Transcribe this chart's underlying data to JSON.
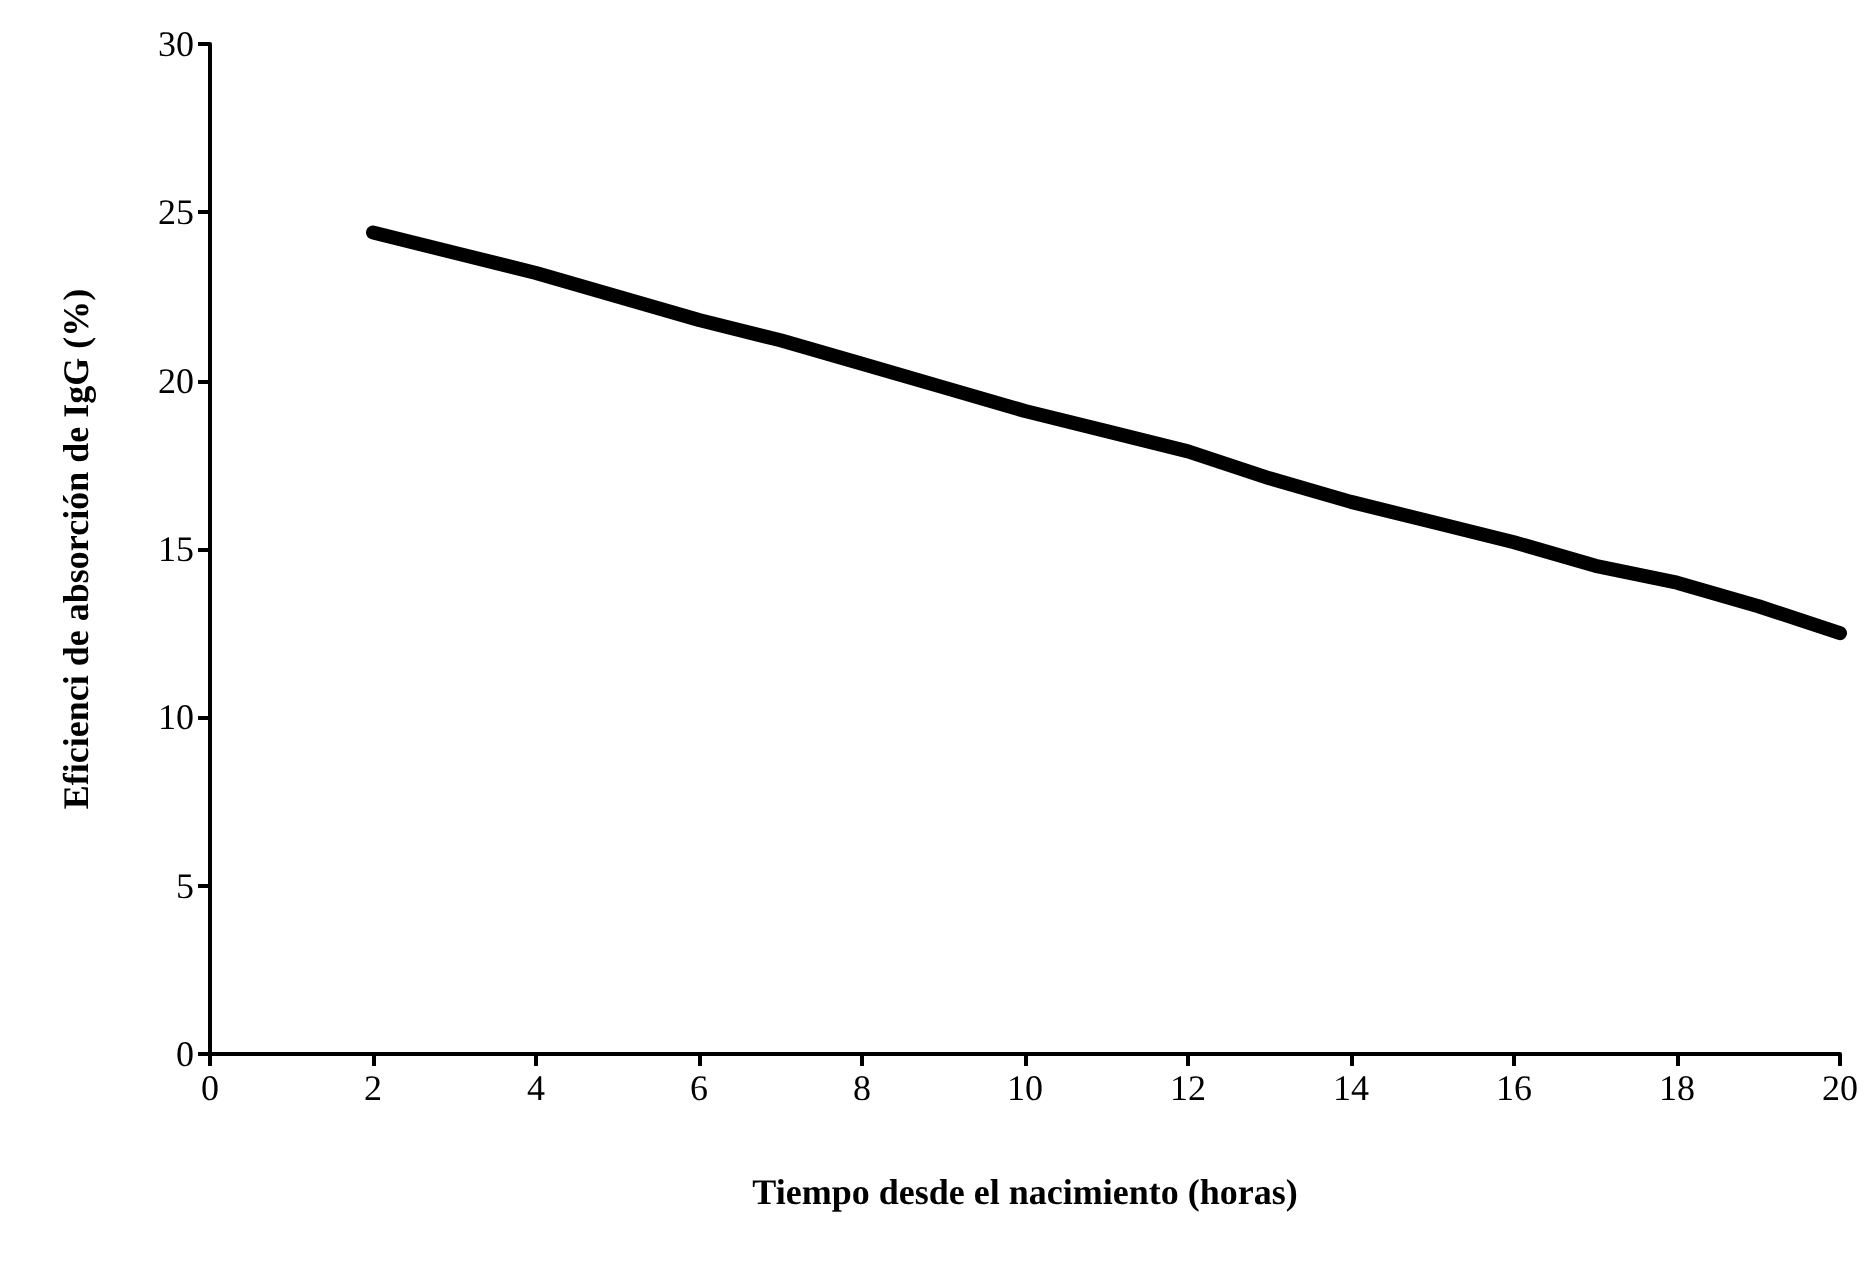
{
  "chart_data": {
    "type": "line",
    "xlabel": "Tiempo desde el nacimiento (horas)",
    "ylabel": "Eficienci de absorción de IgG (%)",
    "x": [
      2,
      3,
      4,
      5,
      6,
      7,
      8,
      9,
      10,
      11,
      12,
      13,
      14,
      15,
      16,
      17,
      18,
      19,
      20
    ],
    "series": [
      {
        "color": "#000000",
        "values": [
          24.4,
          23.8,
          23.2,
          22.5,
          21.8,
          21.2,
          20.5,
          19.8,
          19.1,
          18.5,
          17.9,
          17.1,
          16.4,
          15.8,
          15.2,
          14.5,
          14.0,
          13.3,
          12.5
        ]
      }
    ],
    "xlim": [
      0,
      20
    ],
    "xticks": [
      0,
      2,
      4,
      6,
      8,
      10,
      12,
      14,
      16,
      18,
      20
    ],
    "ylim": [
      0,
      30
    ],
    "yticks": [
      0,
      5,
      10,
      15,
      20,
      25,
      30
    ],
    "grid": false,
    "line_style": "solid"
  }
}
